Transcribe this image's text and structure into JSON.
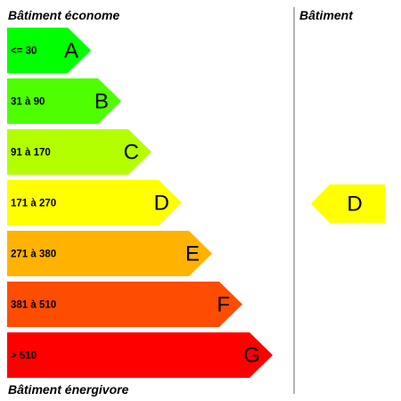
{
  "labels": {
    "top": "Bâtiment économe",
    "bottom": "Bâtiment énergivore",
    "right_header": "Bâtiment"
  },
  "classes": [
    {
      "letter": "A",
      "range": "<= 30",
      "color": "#00ff00",
      "text_color": "#000000"
    },
    {
      "letter": "B",
      "range": "31 à 90",
      "color": "#4dff00",
      "text_color": "#000000"
    },
    {
      "letter": "C",
      "range": "91 à 170",
      "color": "#b3ff00",
      "text_color": "#000000"
    },
    {
      "letter": "D",
      "range": "171 à 270",
      "color": "#ffff00",
      "text_color": "#000000"
    },
    {
      "letter": "E",
      "range": "271 à 380",
      "color": "#ffb300",
      "text_color": "#000000"
    },
    {
      "letter": "F",
      "range": "381 à 510",
      "color": "#ff4d00",
      "text_color": "#000000"
    },
    {
      "letter": "G",
      "range": "> 510",
      "color": "#ff0000",
      "text_color": "#ffffff"
    }
  ],
  "indicator": {
    "letter": "D",
    "color": "#ffff00"
  },
  "divider_color": "#999999"
}
